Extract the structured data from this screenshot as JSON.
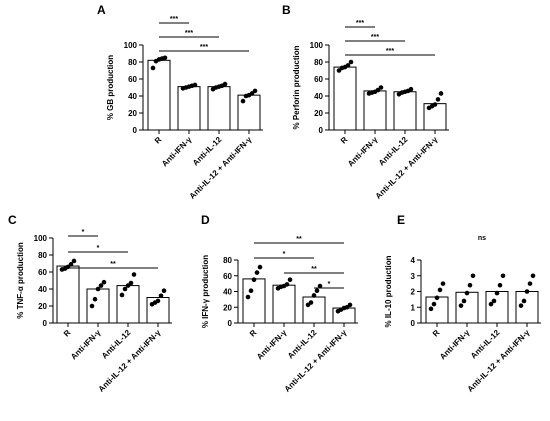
{
  "chart_data": [
    {
      "panel": "A",
      "type": "bar",
      "ylabel": "% GB production",
      "categories": [
        "R",
        "Anti-IFN-γ",
        "Anti-IL-12",
        "Anti-IL-12 + Anti-IFN-γ"
      ],
      "values": [
        82,
        51,
        51,
        41
      ],
      "points": [
        [
          73,
          81,
          83,
          84,
          85
        ],
        [
          49,
          50,
          51,
          52,
          53
        ],
        [
          48,
          50,
          51,
          52,
          54
        ],
        [
          34,
          40,
          41,
          43,
          46
        ]
      ],
      "ylim": [
        0,
        100
      ],
      "yticks": [
        0,
        20,
        40,
        60,
        80,
        100
      ],
      "significance": [
        {
          "from": 0,
          "to": 1,
          "label": "***"
        },
        {
          "from": 0,
          "to": 2,
          "label": "***"
        },
        {
          "from": 0,
          "to": 3,
          "label": "***"
        }
      ]
    },
    {
      "panel": "B",
      "type": "bar",
      "ylabel": "% Perforin production",
      "categories": [
        "R",
        "Anti-IFN-γ",
        "Anti-IL-12",
        "Anti-IL-12 + Anti-IFN-γ"
      ],
      "values": [
        74,
        46,
        45,
        31
      ],
      "points": [
        [
          70,
          73,
          74,
          76,
          80
        ],
        [
          43,
          44,
          45,
          47,
          50
        ],
        [
          42,
          44,
          45,
          46,
          48
        ],
        [
          26,
          28,
          30,
          36,
          43
        ]
      ],
      "ylim": [
        0,
        100
      ],
      "yticks": [
        0,
        20,
        40,
        60,
        80,
        100
      ],
      "significance": [
        {
          "from": 0,
          "to": 1,
          "label": "***"
        },
        {
          "from": 0,
          "to": 2,
          "label": "***"
        },
        {
          "from": 0,
          "to": 3,
          "label": "***"
        }
      ]
    },
    {
      "panel": "C",
      "type": "bar",
      "ylabel": "% TNF-α production",
      "categories": [
        "R",
        "Anti-IFN-γ",
        "Anti-IL-12",
        "Anti-IL-12 + Anti-IFN-γ"
      ],
      "values": [
        67,
        40,
        44,
        30
      ],
      "points": [
        [
          63,
          64,
          66,
          69,
          73
        ],
        [
          20,
          28,
          40,
          44,
          48
        ],
        [
          33,
          40,
          44,
          47,
          57
        ],
        [
          22,
          24,
          26,
          32,
          38
        ]
      ],
      "ylim": [
        0,
        100
      ],
      "yticks": [
        0,
        20,
        40,
        60,
        80,
        100
      ],
      "significance": [
        {
          "from": 0,
          "to": 1,
          "label": "*"
        },
        {
          "from": 0,
          "to": 2,
          "label": "*"
        },
        {
          "from": 0,
          "to": 3,
          "label": "**"
        }
      ]
    },
    {
      "panel": "D",
      "type": "bar",
      "ylabel": "% IFN-γ production",
      "categories": [
        "R",
        "Anti-IFN-γ",
        "Anti-IL-12",
        "Anti-IL-12 + Anti-IFN-γ"
      ],
      "values": [
        56,
        48,
        33,
        19
      ],
      "points": [
        [
          33,
          41,
          55,
          64,
          71
        ],
        [
          44,
          46,
          47,
          49,
          55
        ],
        [
          23,
          26,
          35,
          41,
          47
        ],
        [
          15,
          17,
          19,
          20,
          23
        ]
      ],
      "ylim": [
        0,
        80
      ],
      "yticks": [
        0,
        20,
        40,
        60,
        80
      ],
      "significance": [
        {
          "from": 0,
          "to": 3,
          "label": "**"
        },
        {
          "from": 0,
          "to": 2,
          "label": "*"
        },
        {
          "from": 1,
          "to": 3,
          "label": "**"
        },
        {
          "from": 2,
          "to": 3,
          "label": "*"
        }
      ]
    },
    {
      "panel": "E",
      "type": "bar",
      "ylabel": "% IL-10 production",
      "categories": [
        "R",
        "Anti-IFN-γ",
        "Anti-IL-12",
        "Anti-IL-12 + Anti-IFN-γ"
      ],
      "values": [
        1.65,
        1.95,
        2.0,
        2.0
      ],
      "points": [
        [
          0.9,
          1.2,
          1.6,
          2.1,
          2.5
        ],
        [
          1.1,
          1.4,
          1.9,
          2.4,
          3.0
        ],
        [
          1.2,
          1.4,
          1.9,
          2.4,
          3.0
        ],
        [
          1.1,
          1.4,
          2.0,
          2.5,
          3.0
        ]
      ],
      "ylim": [
        0,
        4
      ],
      "yticks": [
        0,
        1,
        2,
        3,
        4
      ],
      "significance": [],
      "annotation": "ns"
    }
  ]
}
